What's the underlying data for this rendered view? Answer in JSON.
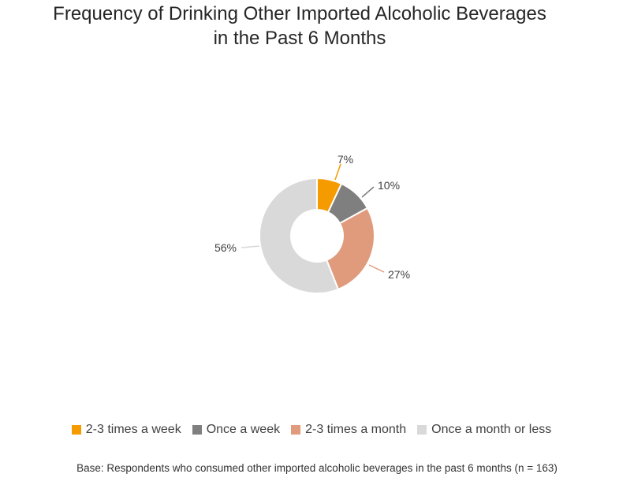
{
  "chart_data": {
    "type": "pie",
    "variant": "donut",
    "title_lines": [
      "Frequency of Drinking Other Imported Alcoholic Beverages",
      "in the Past 6 Months"
    ],
    "categories": [
      "2-3 times a week",
      "Once a week",
      "2-3 times a month",
      "Once a month or less"
    ],
    "values": [
      7,
      10,
      27,
      56
    ],
    "labels": [
      "7%",
      "10%",
      "27%",
      "56%"
    ],
    "colors": [
      "#F59B00",
      "#7F7F7F",
      "#E09A7C",
      "#D9D9D9"
    ],
    "legend_position": "bottom",
    "note": "Base: Respondents who consumed other imported alcoholic beverages in the past 6 months (n = 163)"
  }
}
